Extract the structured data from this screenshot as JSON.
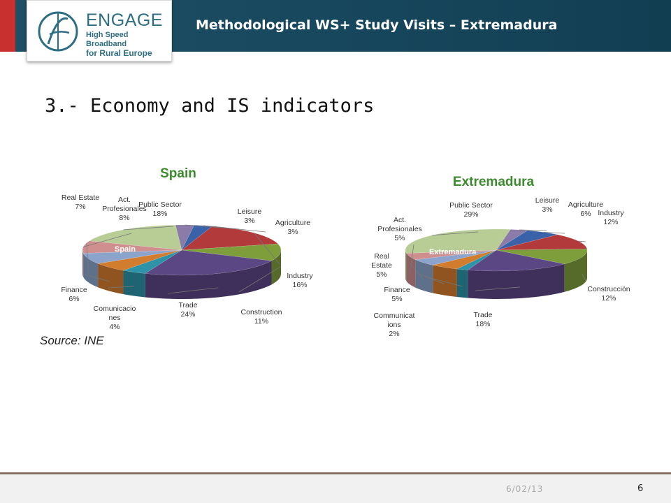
{
  "header": {
    "logo_title": "ENGAGE",
    "logo_line1": "High Speed Broadband",
    "logo_line2": "for Rural Europe",
    "title": "Methodological WS+ Study Visits – Extremadura"
  },
  "slide": {
    "title": "3.- Economy and IS indicators",
    "source": "Source: INE"
  },
  "footer": {
    "date": "6/02/13",
    "page": "6"
  },
  "colors": {
    "header_bg": "#17475d",
    "red_accent": "#c8302f",
    "chart_title": "#3c8a2e"
  },
  "chart_data": [
    {
      "type": "pie",
      "title": "Spain",
      "center_label": "Spain",
      "slices": [
        {
          "label": "Leisure",
          "value": 3,
          "display": "3%",
          "color": "#8a7ba8"
        },
        {
          "label": "Agriculture",
          "value": 3,
          "display": "3%",
          "color": "#3a62a8"
        },
        {
          "label": "Industry",
          "value": 16,
          "display": "16%",
          "color": "#b23a3a"
        },
        {
          "label": "Construction",
          "value": 11,
          "display": "11%",
          "color": "#7e9e3c"
        },
        {
          "label": "Trade",
          "value": 24,
          "display": "24%",
          "color": "#5b4784"
        },
        {
          "label": "Comunicaciones",
          "value": 4,
          "display": "4%",
          "color": "#2e93a8"
        },
        {
          "label": "Finance",
          "value": 6,
          "display": "6%",
          "color": "#d27c2e"
        },
        {
          "label": "Real Estate",
          "value": 7,
          "display": "7%",
          "color": "#8ca4cc"
        },
        {
          "label": "Act. Profesionales",
          "value": 8,
          "display": "8%",
          "color": "#cf8f8f"
        },
        {
          "label": "Public Sector",
          "value": 18,
          "display": "18%",
          "color": "#b8cc96"
        }
      ]
    },
    {
      "type": "pie",
      "title": "Extremadura",
      "center_label": "Extremadura",
      "slices": [
        {
          "label": "Leisure",
          "value": 3,
          "display": "3%",
          "color": "#8a7ba8"
        },
        {
          "label": "Agriculture",
          "value": 6,
          "display": "6%",
          "color": "#3a62a8"
        },
        {
          "label": "Industry",
          "value": 12,
          "display": "12%",
          "color": "#b23a3a"
        },
        {
          "label": "Construcción",
          "value": 12,
          "display": "12%",
          "color": "#7e9e3c"
        },
        {
          "label": "Trade",
          "value": 18,
          "display": "18%",
          "color": "#5b4784"
        },
        {
          "label": "Communications",
          "value": 2,
          "display": "2%",
          "color": "#2e93a8"
        },
        {
          "label": "Finance",
          "value": 5,
          "display": "5%",
          "color": "#d27c2e"
        },
        {
          "label": "Real Estate",
          "value": 5,
          "display": "5%",
          "color": "#8ca4cc"
        },
        {
          "label": "Act. Profesionales",
          "value": 5,
          "display": "5%",
          "color": "#cf8f8f"
        },
        {
          "label": "Public Sector",
          "value": 29,
          "display": "29%",
          "color": "#b8cc96"
        }
      ]
    }
  ]
}
